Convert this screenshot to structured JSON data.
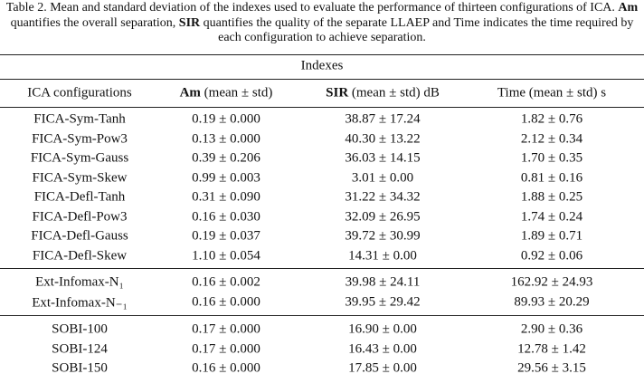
{
  "caption": {
    "parts": [
      "Table 2. Mean and standard deviation of the indexes used to evaluate the performance of thirteen configurations of ICA.",
      "Am",
      "quantifies the overall separation,",
      "SIR",
      "quantifies the quality of the separate LLAEP and Time indicates the time required by each configuration to achieve separation."
    ]
  },
  "table": {
    "group_header": "Indexes",
    "headers": [
      [
        "ICA configurations"
      ],
      [
        "Am",
        "(mean ± std)"
      ],
      [
        "SIR",
        "(mean ± std) dB"
      ],
      [
        "Time (mean ± std) s"
      ]
    ],
    "groups": [
      [
        [
          "FICA-Sym-Tanh",
          "0.19 ± 0.000",
          "38.87 ± 17.24",
          "1.82 ± 0.76"
        ],
        [
          "FICA-Sym-Pow3",
          "0.13 ± 0.000",
          "40.30 ± 13.22",
          "2.12 ± 0.34"
        ],
        [
          "FICA-Sym-Gauss",
          "0.39 ± 0.206",
          "36.03 ± 14.15",
          "1.70 ± 0.35"
        ],
        [
          "FICA-Sym-Skew",
          "0.99 ± 0.003",
          "3.01 ± 0.00",
          "0.81 ± 0.16"
        ],
        [
          "FICA-Defl-Tanh",
          "0.31 ± 0.090",
          "31.22 ± 34.32",
          "1.88 ± 0.25"
        ],
        [
          "FICA-Defl-Pow3",
          "0.16 ± 0.030",
          "32.09 ± 26.95",
          "1.74 ± 0.24"
        ],
        [
          "FICA-Defl-Gauss",
          "0.19 ± 0.037",
          "39.72 ± 30.99",
          "1.89 ± 0.71"
        ],
        [
          "FICA-Defl-Skew",
          "1.10 ± 0.054",
          "14.31 ± 0.00",
          "0.92 ± 0.06"
        ]
      ],
      [
        [
          "Ext-Infomax-N₁",
          "0.16 ± 0.002",
          "39.98 ± 24.11",
          "162.92 ± 24.93"
        ],
        [
          "Ext-Infomax-N₋₁",
          "0.16 ± 0.000",
          "39.95 ± 29.42",
          "89.93 ± 20.29"
        ]
      ],
      [
        [
          "SOBI-100",
          "0.17 ± 0.000",
          "16.90 ± 0.00",
          "2.90 ± 0.36"
        ],
        [
          "SOBI-124",
          "0.17 ± 0.000",
          "16.43 ± 0.00",
          "12.78 ± 1.42"
        ],
        [
          "SOBI-150",
          "0.16 ± 0.000",
          "17.85 ± 0.00",
          "29.56 ± 3.15"
        ]
      ]
    ]
  }
}
